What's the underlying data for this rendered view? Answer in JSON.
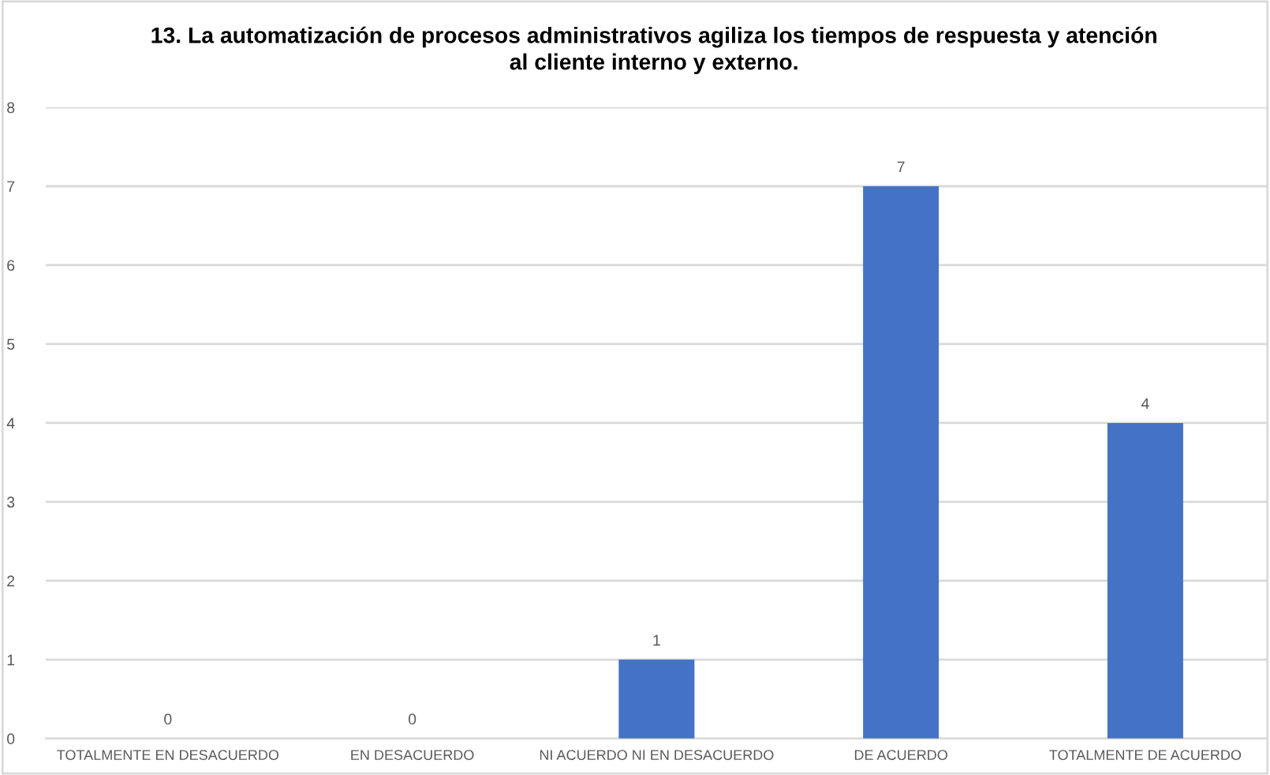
{
  "chart_data": {
    "type": "bar",
    "title": "13. La automatización de procesos administrativos agiliza los tiempos de respuesta y atención\nal cliente interno y externo.",
    "categories": [
      "TOTALMENTE EN DESACUERDO",
      "EN DESACUERDO",
      "NI ACUERDO NI EN DESACUERDO",
      "DE ACUERDO",
      "TOTALMENTE DE ACUERDO"
    ],
    "values": [
      0,
      0,
      1,
      7,
      4
    ],
    "color": "#4472c4",
    "ylim": [
      0,
      8
    ],
    "yticks": [
      0,
      1,
      2,
      3,
      4,
      5,
      6,
      7,
      8
    ],
    "grid": "y",
    "data_labels": true
  }
}
